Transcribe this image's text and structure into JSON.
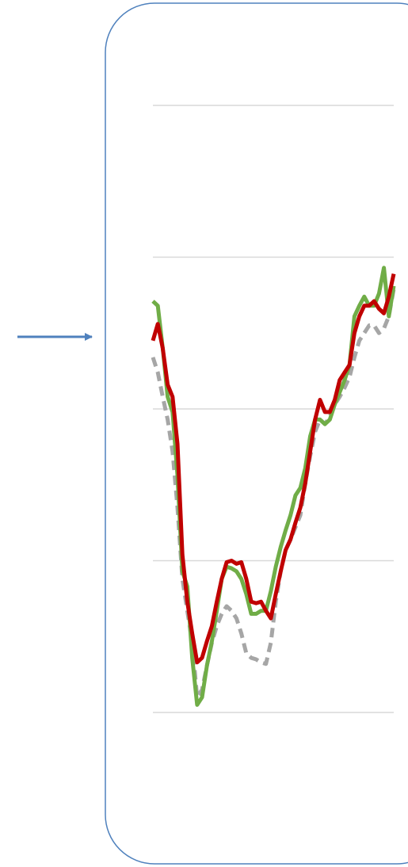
{
  "chart_data": {
    "type": "line",
    "x": [
      0,
      1,
      2,
      3,
      4,
      5,
      6,
      7,
      8,
      9,
      10,
      11,
      12,
      13,
      14,
      15,
      16,
      17,
      18,
      19,
      20,
      21,
      22,
      23,
      24,
      25,
      26,
      27,
      28,
      29,
      30,
      31,
      32,
      33,
      34,
      35,
      36,
      37,
      38,
      39,
      40,
      41,
      42,
      43,
      44,
      45,
      46,
      47,
      48,
      49
    ],
    "xlim": [
      0,
      49
    ],
    "ylim": [
      0,
      4
    ],
    "yticks": [
      0,
      1,
      2,
      3,
      4
    ],
    "grid": true,
    "series": [
      {
        "color": "#a6a6a6",
        "dash": true,
        "values": [
          2.34,
          2.24,
          2.08,
          1.93,
          1.72,
          1.35,
          0.88,
          0.67,
          0.46,
          0.1,
          0.15,
          0.31,
          0.46,
          0.57,
          0.65,
          0.7,
          0.67,
          0.62,
          0.52,
          0.39,
          0.36,
          0.35,
          0.33,
          0.32,
          0.46,
          0.73,
          0.93,
          1.07,
          1.14,
          1.22,
          1.3,
          1.51,
          1.69,
          1.85,
          1.93,
          1.9,
          1.95,
          2.03,
          2.08,
          2.14,
          2.21,
          2.34,
          2.45,
          2.5,
          2.55,
          2.55,
          2.5,
          2.53,
          2.61,
          2.79
        ]
      },
      {
        "color": "#70ad47",
        "dash": false,
        "values": [
          2.71,
          2.68,
          2.4,
          2.08,
          1.98,
          1.56,
          0.93,
          0.83,
          0.36,
          0.05,
          0.1,
          0.31,
          0.47,
          0.67,
          0.88,
          0.96,
          0.95,
          0.93,
          0.88,
          0.78,
          0.65,
          0.65,
          0.67,
          0.67,
          0.8,
          0.96,
          1.09,
          1.2,
          1.3,
          1.43,
          1.48,
          1.61,
          1.82,
          1.93,
          1.93,
          1.9,
          1.93,
          2.03,
          2.11,
          2.19,
          2.29,
          2.61,
          2.68,
          2.74,
          2.68,
          2.68,
          2.76,
          2.93,
          2.61,
          2.81
        ]
      },
      {
        "color": "#c00000",
        "dash": false,
        "values": [
          2.45,
          2.56,
          2.4,
          2.16,
          2.08,
          1.77,
          1.04,
          0.73,
          0.52,
          0.33,
          0.36,
          0.47,
          0.57,
          0.73,
          0.88,
          0.99,
          1.0,
          0.98,
          0.99,
          0.88,
          0.73,
          0.72,
          0.73,
          0.67,
          0.62,
          0.78,
          0.93,
          1.07,
          1.14,
          1.25,
          1.35,
          1.51,
          1.72,
          1.93,
          2.06,
          1.98,
          1.98,
          2.06,
          2.19,
          2.24,
          2.29,
          2.5,
          2.61,
          2.68,
          2.68,
          2.71,
          2.66,
          2.63,
          2.74,
          2.89
        ]
      }
    ]
  }
}
